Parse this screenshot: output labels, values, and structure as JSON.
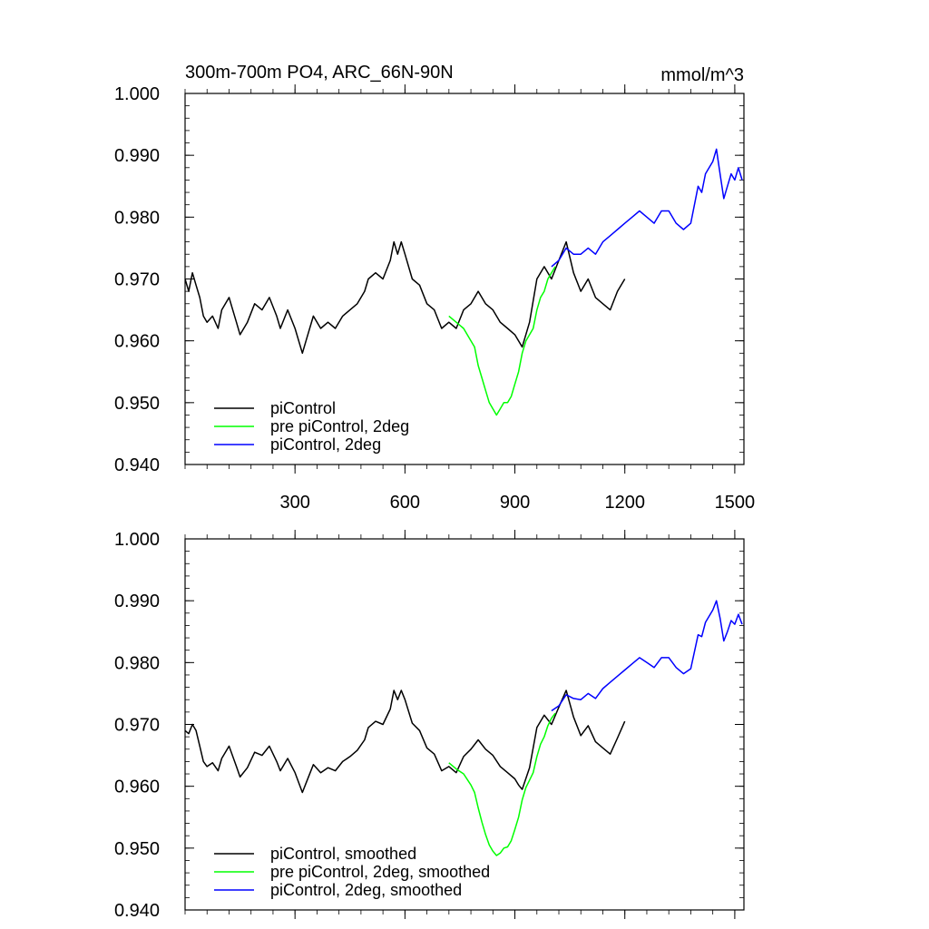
{
  "chart_data": [
    {
      "type": "line",
      "title": "300m-700m PO4, ARC_66N-90N",
      "units_label": "mmol/m^3",
      "xlim": [
        0,
        1525
      ],
      "ylim": [
        0.94,
        1.0
      ],
      "x_ticks": [
        300,
        600,
        900,
        1200,
        1500
      ],
      "x_tick_labels": [
        "300",
        "600",
        "900",
        "1200",
        "1500"
      ],
      "y_ticks": [
        0.94,
        0.95,
        0.96,
        0.97,
        0.98,
        0.99,
        1.0
      ],
      "y_tick_labels": [
        "0.940",
        "0.950",
        "0.960",
        "0.970",
        "0.980",
        "0.990",
        "1.000"
      ],
      "legend_position": "bottom-left",
      "series": [
        {
          "name": "piControl",
          "color": "#000000",
          "x": [
            0,
            10,
            20,
            30,
            40,
            50,
            60,
            75,
            90,
            100,
            120,
            140,
            150,
            170,
            190,
            210,
            230,
            250,
            260,
            280,
            300,
            320,
            330,
            350,
            370,
            390,
            410,
            430,
            450,
            470,
            490,
            500,
            520,
            540,
            560,
            570,
            580,
            590,
            600,
            620,
            640,
            660,
            680,
            700,
            720,
            740,
            760,
            780,
            800,
            820,
            840,
            860,
            880,
            900,
            910,
            920,
            940,
            960,
            980,
            1000,
            1020,
            1040,
            1060,
            1080,
            1100,
            1120,
            1140,
            1160,
            1180,
            1200
          ],
          "y": [
            0.97,
            0.968,
            0.971,
            0.969,
            0.967,
            0.964,
            0.963,
            0.964,
            0.962,
            0.965,
            0.967,
            0.963,
            0.961,
            0.963,
            0.966,
            0.965,
            0.967,
            0.964,
            0.962,
            0.965,
            0.962,
            0.958,
            0.96,
            0.964,
            0.962,
            0.963,
            0.962,
            0.964,
            0.965,
            0.966,
            0.968,
            0.97,
            0.971,
            0.97,
            0.973,
            0.976,
            0.974,
            0.976,
            0.974,
            0.97,
            0.969,
            0.966,
            0.965,
            0.962,
            0.963,
            0.962,
            0.965,
            0.966,
            0.968,
            0.966,
            0.965,
            0.963,
            0.962,
            0.961,
            0.96,
            0.959,
            0.963,
            0.97,
            0.972,
            0.97,
            0.973,
            0.976,
            0.971,
            0.968,
            0.97,
            0.967,
            0.966,
            0.965,
            0.968,
            0.97
          ]
        },
        {
          "name": "pre piControl, 2deg",
          "color": "#00ff00",
          "x": [
            720,
            740,
            760,
            780,
            790,
            800,
            810,
            820,
            830,
            840,
            850,
            860,
            870,
            880,
            890,
            900,
            910,
            920,
            930,
            940,
            950,
            960,
            970,
            980,
            990,
            1000,
            1010
          ],
          "y": [
            0.964,
            0.963,
            0.962,
            0.96,
            0.959,
            0.956,
            0.954,
            0.952,
            0.95,
            0.949,
            0.948,
            0.949,
            0.95,
            0.95,
            0.951,
            0.953,
            0.955,
            0.958,
            0.96,
            0.961,
            0.962,
            0.965,
            0.967,
            0.968,
            0.97,
            0.971,
            0.972
          ]
        },
        {
          "name": "piControl, 2deg",
          "color": "#0000ff",
          "x": [
            1000,
            1020,
            1040,
            1060,
            1080,
            1100,
            1120,
            1140,
            1160,
            1180,
            1200,
            1220,
            1240,
            1260,
            1280,
            1300,
            1320,
            1340,
            1360,
            1380,
            1400,
            1410,
            1420,
            1440,
            1450,
            1460,
            1470,
            1480,
            1490,
            1500,
            1510,
            1520
          ],
          "y": [
            0.972,
            0.973,
            0.975,
            0.974,
            0.974,
            0.975,
            0.974,
            0.976,
            0.977,
            0.978,
            0.979,
            0.98,
            0.981,
            0.98,
            0.979,
            0.981,
            0.981,
            0.979,
            0.978,
            0.979,
            0.985,
            0.984,
            0.987,
            0.989,
            0.991,
            0.987,
            0.983,
            0.985,
            0.987,
            0.986,
            0.988,
            0.986
          ]
        }
      ]
    },
    {
      "type": "line",
      "title": "",
      "xlim": [
        0,
        1525
      ],
      "ylim": [
        0.94,
        1.0
      ],
      "x_ticks": [
        300,
        600,
        900,
        1200,
        1500
      ],
      "y_ticks": [
        0.94,
        0.95,
        0.96,
        0.97,
        0.98,
        0.99,
        1.0
      ],
      "y_tick_labels": [
        "0.940",
        "0.950",
        "0.960",
        "0.970",
        "0.980",
        "0.990",
        "1.000"
      ],
      "legend_position": "bottom-left",
      "series": [
        {
          "name": "piControl, smoothed",
          "color": "#000000",
          "x": [
            0,
            10,
            20,
            30,
            40,
            50,
            60,
            75,
            90,
            100,
            120,
            140,
            150,
            170,
            190,
            210,
            230,
            250,
            260,
            280,
            300,
            320,
            330,
            350,
            370,
            390,
            410,
            430,
            450,
            470,
            490,
            500,
            520,
            540,
            560,
            570,
            580,
            590,
            600,
            620,
            640,
            660,
            680,
            700,
            720,
            740,
            760,
            780,
            800,
            820,
            840,
            860,
            880,
            900,
            910,
            920,
            940,
            960,
            980,
            1000,
            1020,
            1040,
            1060,
            1080,
            1100,
            1120,
            1140,
            1160,
            1180,
            1200
          ],
          "y": [
            0.969,
            0.9685,
            0.97,
            0.969,
            0.9665,
            0.964,
            0.9632,
            0.9638,
            0.9625,
            0.9645,
            0.9665,
            0.9632,
            0.9615,
            0.963,
            0.9655,
            0.965,
            0.9665,
            0.964,
            0.9625,
            0.9645,
            0.9622,
            0.959,
            0.9605,
            0.9635,
            0.9622,
            0.963,
            0.9625,
            0.964,
            0.9648,
            0.9658,
            0.9675,
            0.9695,
            0.9705,
            0.97,
            0.9725,
            0.9755,
            0.974,
            0.9755,
            0.974,
            0.9702,
            0.969,
            0.9662,
            0.9652,
            0.9625,
            0.9632,
            0.9622,
            0.9648,
            0.966,
            0.9675,
            0.966,
            0.965,
            0.9632,
            0.9622,
            0.9612,
            0.9602,
            0.9595,
            0.963,
            0.9695,
            0.9715,
            0.97,
            0.9728,
            0.9755,
            0.9712,
            0.9682,
            0.9698,
            0.9672,
            0.9662,
            0.9652,
            0.9678,
            0.9705
          ]
        },
        {
          "name": "pre piControl, 2deg, smoothed",
          "color": "#00ff00",
          "x": [
            720,
            740,
            760,
            780,
            790,
            800,
            810,
            820,
            830,
            840,
            850,
            860,
            870,
            880,
            890,
            900,
            910,
            920,
            930,
            940,
            950,
            960,
            970,
            980,
            990,
            1000,
            1010
          ],
          "y": [
            0.9638,
            0.9628,
            0.962,
            0.9602,
            0.959,
            0.9565,
            0.9542,
            0.9522,
            0.9505,
            0.9495,
            0.9488,
            0.9492,
            0.95,
            0.9502,
            0.9512,
            0.953,
            0.955,
            0.9578,
            0.9598,
            0.961,
            0.9622,
            0.9648,
            0.9668,
            0.968,
            0.9698,
            0.971,
            0.9718
          ]
        },
        {
          "name": "piControl, 2deg, smoothed",
          "color": "#0000ff",
          "x": [
            1000,
            1020,
            1040,
            1060,
            1080,
            1100,
            1120,
            1140,
            1160,
            1180,
            1200,
            1220,
            1240,
            1260,
            1280,
            1300,
            1320,
            1340,
            1360,
            1380,
            1400,
            1410,
            1420,
            1440,
            1450,
            1460,
            1470,
            1480,
            1490,
            1500,
            1510,
            1520
          ],
          "y": [
            0.9722,
            0.973,
            0.9748,
            0.9742,
            0.974,
            0.975,
            0.9742,
            0.9758,
            0.9768,
            0.9778,
            0.9788,
            0.9798,
            0.9808,
            0.98,
            0.9792,
            0.9808,
            0.9808,
            0.9792,
            0.9782,
            0.979,
            0.9845,
            0.9842,
            0.9865,
            0.9885,
            0.99,
            0.9872,
            0.9835,
            0.985,
            0.9868,
            0.9862,
            0.9878,
            0.9862
          ]
        }
      ]
    }
  ]
}
